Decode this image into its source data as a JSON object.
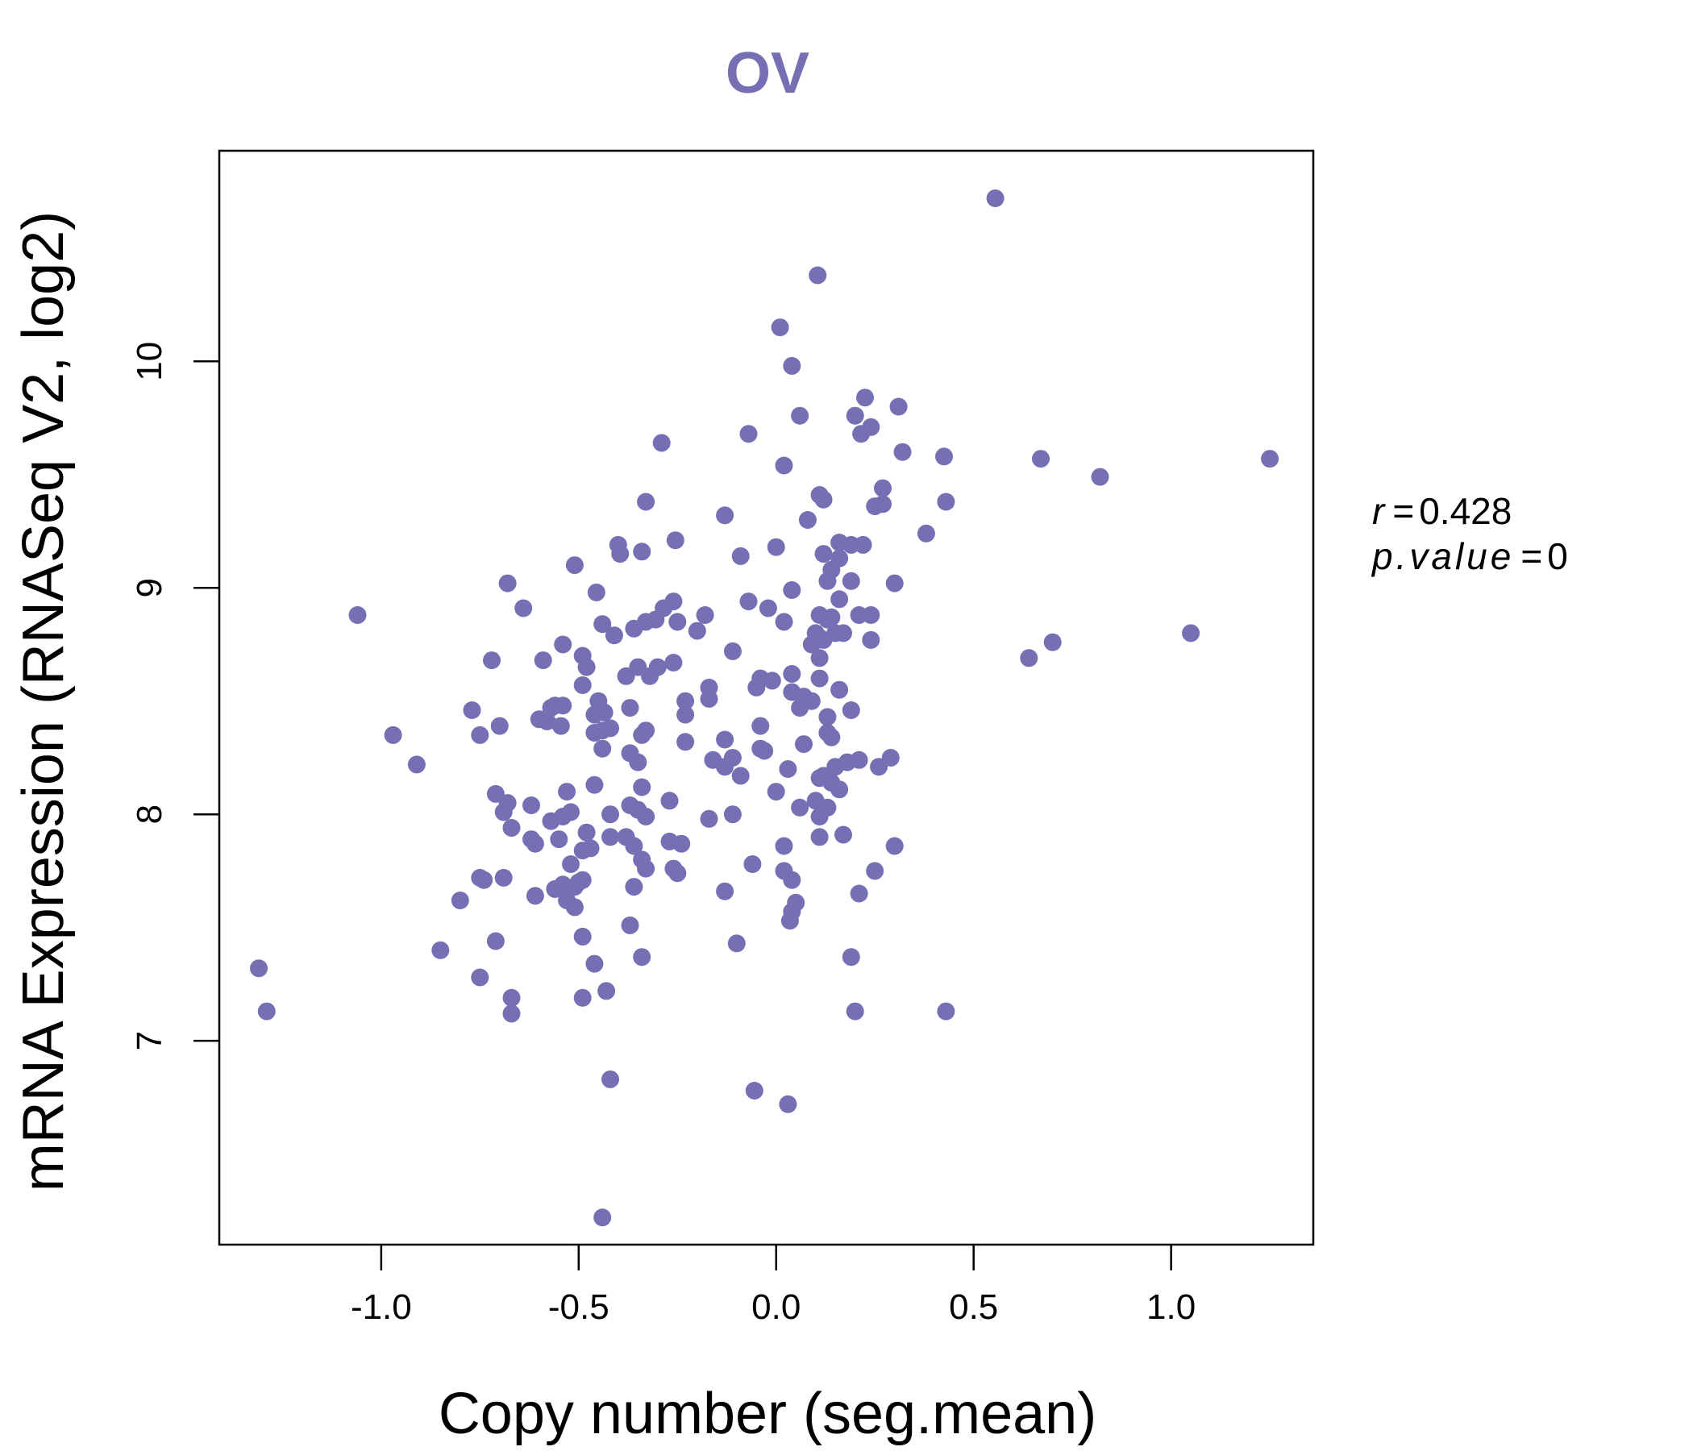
{
  "chart_data": {
    "type": "scatter",
    "title": "OV",
    "xlabel": "Copy number (seg.mean)",
    "ylabel": "mRNA Expression (RNASeq V2, log2)",
    "xlim": [
      -1.41,
      1.36
    ],
    "ylim": [
      6.1,
      10.93
    ],
    "xticks": [
      -1.0,
      -0.5,
      0.0,
      0.5,
      1.0
    ],
    "xtick_labels": [
      "-1.0",
      "-0.5",
      "0.0",
      "0.5",
      "1.0"
    ],
    "yticks": [
      7,
      8,
      9,
      10
    ],
    "ytick_labels": [
      "7",
      "8",
      "9",
      "10"
    ],
    "point_color": "#7570b3",
    "stats": {
      "r_label": "r",
      "r_value": "0.428",
      "p_label": "p.value",
      "p_value": "0"
    },
    "points": [
      [
        0.555,
        10.72
      ],
      [
        0.105,
        10.38
      ],
      [
        0.01,
        10.15
      ],
      [
        0.04,
        9.98
      ],
      [
        0.225,
        9.84
      ],
      [
        0.31,
        9.8
      ],
      [
        0.2,
        9.76
      ],
      [
        0.06,
        9.76
      ],
      [
        0.24,
        9.71
      ],
      [
        0.215,
        9.68
      ],
      [
        -0.07,
        9.68
      ],
      [
        -0.29,
        9.64
      ],
      [
        0.32,
        9.6
      ],
      [
        0.425,
        9.58
      ],
      [
        0.67,
        9.57
      ],
      [
        1.25,
        9.57
      ],
      [
        0.02,
        9.54
      ],
      [
        0.82,
        9.49
      ],
      [
        0.27,
        9.44
      ],
      [
        0.11,
        9.41
      ],
      [
        0.12,
        9.39
      ],
      [
        -0.33,
        9.38
      ],
      [
        0.43,
        9.38
      ],
      [
        0.27,
        9.37
      ],
      [
        0.25,
        9.36
      ],
      [
        -0.13,
        9.32
      ],
      [
        0.08,
        9.3
      ],
      [
        0.38,
        9.24
      ],
      [
        -0.255,
        9.21
      ],
      [
        0.16,
        9.2
      ],
      [
        0.19,
        9.19
      ],
      [
        0.22,
        9.19
      ],
      [
        -0.4,
        9.19
      ],
      [
        0.0,
        9.18
      ],
      [
        -0.34,
        9.16
      ],
      [
        -0.395,
        9.15
      ],
      [
        0.12,
        9.15
      ],
      [
        -0.09,
        9.14
      ],
      [
        0.16,
        9.13
      ],
      [
        0.14,
        9.08
      ],
      [
        -0.51,
        9.1
      ],
      [
        0.13,
        9.03
      ],
      [
        0.19,
        9.03
      ],
      [
        0.3,
        9.02
      ],
      [
        -0.68,
        9.02
      ],
      [
        0.04,
        8.99
      ],
      [
        -0.455,
        8.98
      ],
      [
        -0.26,
        8.94
      ],
      [
        -0.07,
        8.94
      ],
      [
        0.16,
        8.95
      ],
      [
        -0.02,
        8.91
      ],
      [
        -0.285,
        8.91
      ],
      [
        -0.64,
        8.91
      ],
      [
        -1.06,
        8.88
      ],
      [
        -0.18,
        8.88
      ],
      [
        0.11,
        8.88
      ],
      [
        0.24,
        8.88
      ],
      [
        0.21,
        8.88
      ],
      [
        0.14,
        8.87
      ],
      [
        0.13,
        8.86
      ],
      [
        -0.305,
        8.86
      ],
      [
        -0.33,
        8.85
      ],
      [
        -0.25,
        8.85
      ],
      [
        -0.44,
        8.84
      ],
      [
        0.02,
        8.85
      ],
      [
        -0.2,
        8.81
      ],
      [
        -0.36,
        8.82
      ],
      [
        0.15,
        8.8
      ],
      [
        0.1,
        8.8
      ],
      [
        0.17,
        8.8
      ],
      [
        1.05,
        8.8
      ],
      [
        -0.41,
        8.79
      ],
      [
        0.11,
        8.78
      ],
      [
        0.12,
        8.77
      ],
      [
        0.24,
        8.77
      ],
      [
        0.7,
        8.76
      ],
      [
        -0.54,
        8.75
      ],
      [
        0.09,
        8.75
      ],
      [
        -0.11,
        8.72
      ],
      [
        -0.49,
        8.7
      ],
      [
        0.64,
        8.69
      ],
      [
        0.11,
        8.69
      ],
      [
        -0.72,
        8.68
      ],
      [
        -0.59,
        8.68
      ],
      [
        -0.26,
        8.67
      ],
      [
        -0.48,
        8.65
      ],
      [
        -0.35,
        8.65
      ],
      [
        -0.3,
        8.65
      ],
      [
        -0.32,
        8.61
      ],
      [
        -0.38,
        8.61
      ],
      [
        0.04,
        8.62
      ],
      [
        -0.04,
        8.6
      ],
      [
        0.11,
        8.6
      ],
      [
        -0.01,
        8.59
      ],
      [
        -0.05,
        8.56
      ],
      [
        -0.17,
        8.56
      ],
      [
        0.16,
        8.55
      ],
      [
        -0.49,
        8.57
      ],
      [
        0.04,
        8.54
      ],
      [
        0.07,
        8.52
      ],
      [
        0.09,
        8.5
      ],
      [
        -0.17,
        8.51
      ],
      [
        -0.23,
        8.5
      ],
      [
        -0.45,
        8.5
      ],
      [
        0.06,
        8.47
      ],
      [
        -0.56,
        8.48
      ],
      [
        -0.57,
        8.47
      ],
      [
        -0.54,
        8.48
      ],
      [
        -0.37,
        8.47
      ],
      [
        -0.77,
        8.46
      ],
      [
        -0.435,
        8.45
      ],
      [
        -0.46,
        8.44
      ],
      [
        -0.23,
        8.44
      ],
      [
        0.19,
        8.46
      ],
      [
        0.13,
        8.43
      ],
      [
        -0.6,
        8.42
      ],
      [
        -0.58,
        8.41
      ],
      [
        -0.545,
        8.39
      ],
      [
        -0.04,
        8.39
      ],
      [
        -0.7,
        8.39
      ],
      [
        -0.42,
        8.38
      ],
      [
        -0.44,
        8.37
      ],
      [
        -0.33,
        8.37
      ],
      [
        -0.46,
        8.36
      ],
      [
        -0.34,
        8.35
      ],
      [
        0.13,
        8.36
      ],
      [
        -0.75,
        8.35
      ],
      [
        -0.97,
        8.35
      ],
      [
        -0.13,
        8.33
      ],
      [
        -0.23,
        8.32
      ],
      [
        0.14,
        8.34
      ],
      [
        0.07,
        8.31
      ],
      [
        -0.44,
        8.29
      ],
      [
        -0.04,
        8.29
      ],
      [
        -0.03,
        8.28
      ],
      [
        -0.37,
        8.27
      ],
      [
        -0.11,
        8.25
      ],
      [
        -0.16,
        8.24
      ],
      [
        0.29,
        8.25
      ],
      [
        0.21,
        8.24
      ],
      [
        0.18,
        8.23
      ],
      [
        -0.35,
        8.23
      ],
      [
        -0.13,
        8.21
      ],
      [
        0.26,
        8.21
      ],
      [
        0.15,
        8.21
      ],
      [
        0.03,
        8.2
      ],
      [
        -0.91,
        8.22
      ],
      [
        -0.09,
        8.17
      ],
      [
        0.12,
        8.17
      ],
      [
        0.11,
        8.16
      ],
      [
        0.14,
        8.14
      ],
      [
        -0.46,
        8.13
      ],
      [
        -0.34,
        8.12
      ],
      [
        0.16,
        8.11
      ],
      [
        -0.53,
        8.1
      ],
      [
        0.0,
        8.1
      ],
      [
        -0.71,
        8.09
      ],
      [
        -0.27,
        8.06
      ],
      [
        0.1,
        8.06
      ],
      [
        -0.68,
        8.05
      ],
      [
        -0.37,
        8.04
      ],
      [
        -0.62,
        8.04
      ],
      [
        0.13,
        8.03
      ],
      [
        0.06,
        8.03
      ],
      [
        -0.35,
        8.02
      ],
      [
        -0.52,
        8.01
      ],
      [
        -0.69,
        8.01
      ],
      [
        -0.42,
        8.0
      ],
      [
        -0.11,
        8.0
      ],
      [
        0.11,
        7.99
      ],
      [
        -0.33,
        7.99
      ],
      [
        -0.17,
        7.98
      ],
      [
        -0.57,
        7.97
      ],
      [
        -0.54,
        7.99
      ],
      [
        -0.67,
        7.94
      ],
      [
        -0.48,
        7.92
      ],
      [
        -0.38,
        7.9
      ],
      [
        0.11,
        7.9
      ],
      [
        0.17,
        7.91
      ],
      [
        -0.42,
        7.9
      ],
      [
        -0.62,
        7.89
      ],
      [
        -0.55,
        7.89
      ],
      [
        -0.27,
        7.88
      ],
      [
        -0.61,
        7.87
      ],
      [
        -0.24,
        7.87
      ],
      [
        0.3,
        7.86
      ],
      [
        -0.36,
        7.86
      ],
      [
        0.02,
        7.86
      ],
      [
        -0.47,
        7.85
      ],
      [
        -0.49,
        7.84
      ],
      [
        -0.34,
        7.8
      ],
      [
        -0.52,
        7.78
      ],
      [
        -0.06,
        7.78
      ],
      [
        -0.33,
        7.76
      ],
      [
        -0.26,
        7.76
      ],
      [
        0.02,
        7.75
      ],
      [
        0.25,
        7.75
      ],
      [
        -0.25,
        7.74
      ],
      [
        -0.75,
        7.72
      ],
      [
        -0.69,
        7.72
      ],
      [
        -0.74,
        7.71
      ],
      [
        0.04,
        7.71
      ],
      [
        -0.49,
        7.71
      ],
      [
        -0.5,
        7.7
      ],
      [
        -0.54,
        7.69
      ],
      [
        -0.51,
        7.68
      ],
      [
        -0.36,
        7.68
      ],
      [
        -0.56,
        7.67
      ],
      [
        -0.13,
        7.66
      ],
      [
        0.21,
        7.65
      ],
      [
        -0.61,
        7.64
      ],
      [
        -0.8,
        7.62
      ],
      [
        0.05,
        7.61
      ],
      [
        -0.53,
        7.62
      ],
      [
        -0.51,
        7.59
      ],
      [
        0.04,
        7.57
      ],
      [
        0.035,
        7.53
      ],
      [
        -0.37,
        7.51
      ],
      [
        -0.49,
        7.46
      ],
      [
        -0.71,
        7.44
      ],
      [
        -0.1,
        7.43
      ],
      [
        -0.85,
        7.4
      ],
      [
        -0.34,
        7.37
      ],
      [
        0.19,
        7.37
      ],
      [
        -0.46,
        7.34
      ],
      [
        -1.31,
        7.32
      ],
      [
        -0.75,
        7.28
      ],
      [
        -0.43,
        7.22
      ],
      [
        -0.67,
        7.19
      ],
      [
        -0.49,
        7.19
      ],
      [
        -1.29,
        7.13
      ],
      [
        -0.67,
        7.12
      ],
      [
        0.2,
        7.13
      ],
      [
        0.43,
        7.13
      ],
      [
        -0.42,
        6.83
      ],
      [
        -0.055,
        6.78
      ],
      [
        0.03,
        6.72
      ],
      [
        -0.44,
        6.22
      ]
    ]
  }
}
